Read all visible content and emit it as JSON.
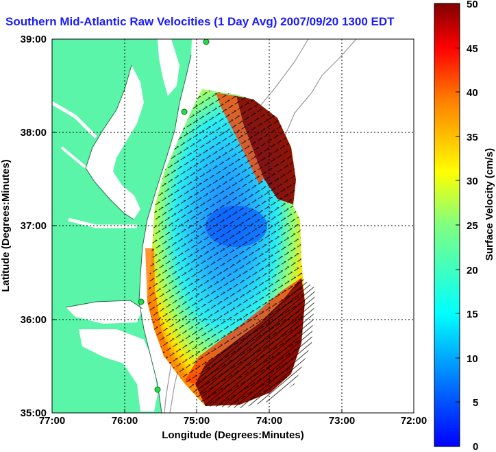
{
  "title": "Southern Mid-Atlantic Raw Velocities (1 Day Avg) 2007/09/20 1300 EDT",
  "map": {
    "x_axis_label": "Longitude (Degrees:Minutes)",
    "y_axis_label": "Latitude (Degrees:Minutes)",
    "x_tick_labels": [
      "77:00",
      "76:00",
      "75:00",
      "74:00",
      "73:00",
      "72:00"
    ],
    "y_tick_labels": [
      "39:00",
      "38:00",
      "37:00",
      "36:00",
      "35:00"
    ],
    "x_range_deg": [
      -77,
      -72
    ],
    "y_range_deg": [
      35,
      39
    ],
    "land_color": "#5af5a8",
    "stations": [
      "station-cape-may",
      "station-wallops",
      "station-duck",
      "station-hatteras"
    ]
  },
  "colorbar": {
    "label": "Surface Velocity (cm/s)",
    "ticks": [
      "50",
      "45",
      "40",
      "35",
      "30",
      "25",
      "20",
      "15",
      "10",
      "5",
      "0"
    ],
    "range": [
      0,
      50
    ],
    "colormap": "jet"
  }
}
